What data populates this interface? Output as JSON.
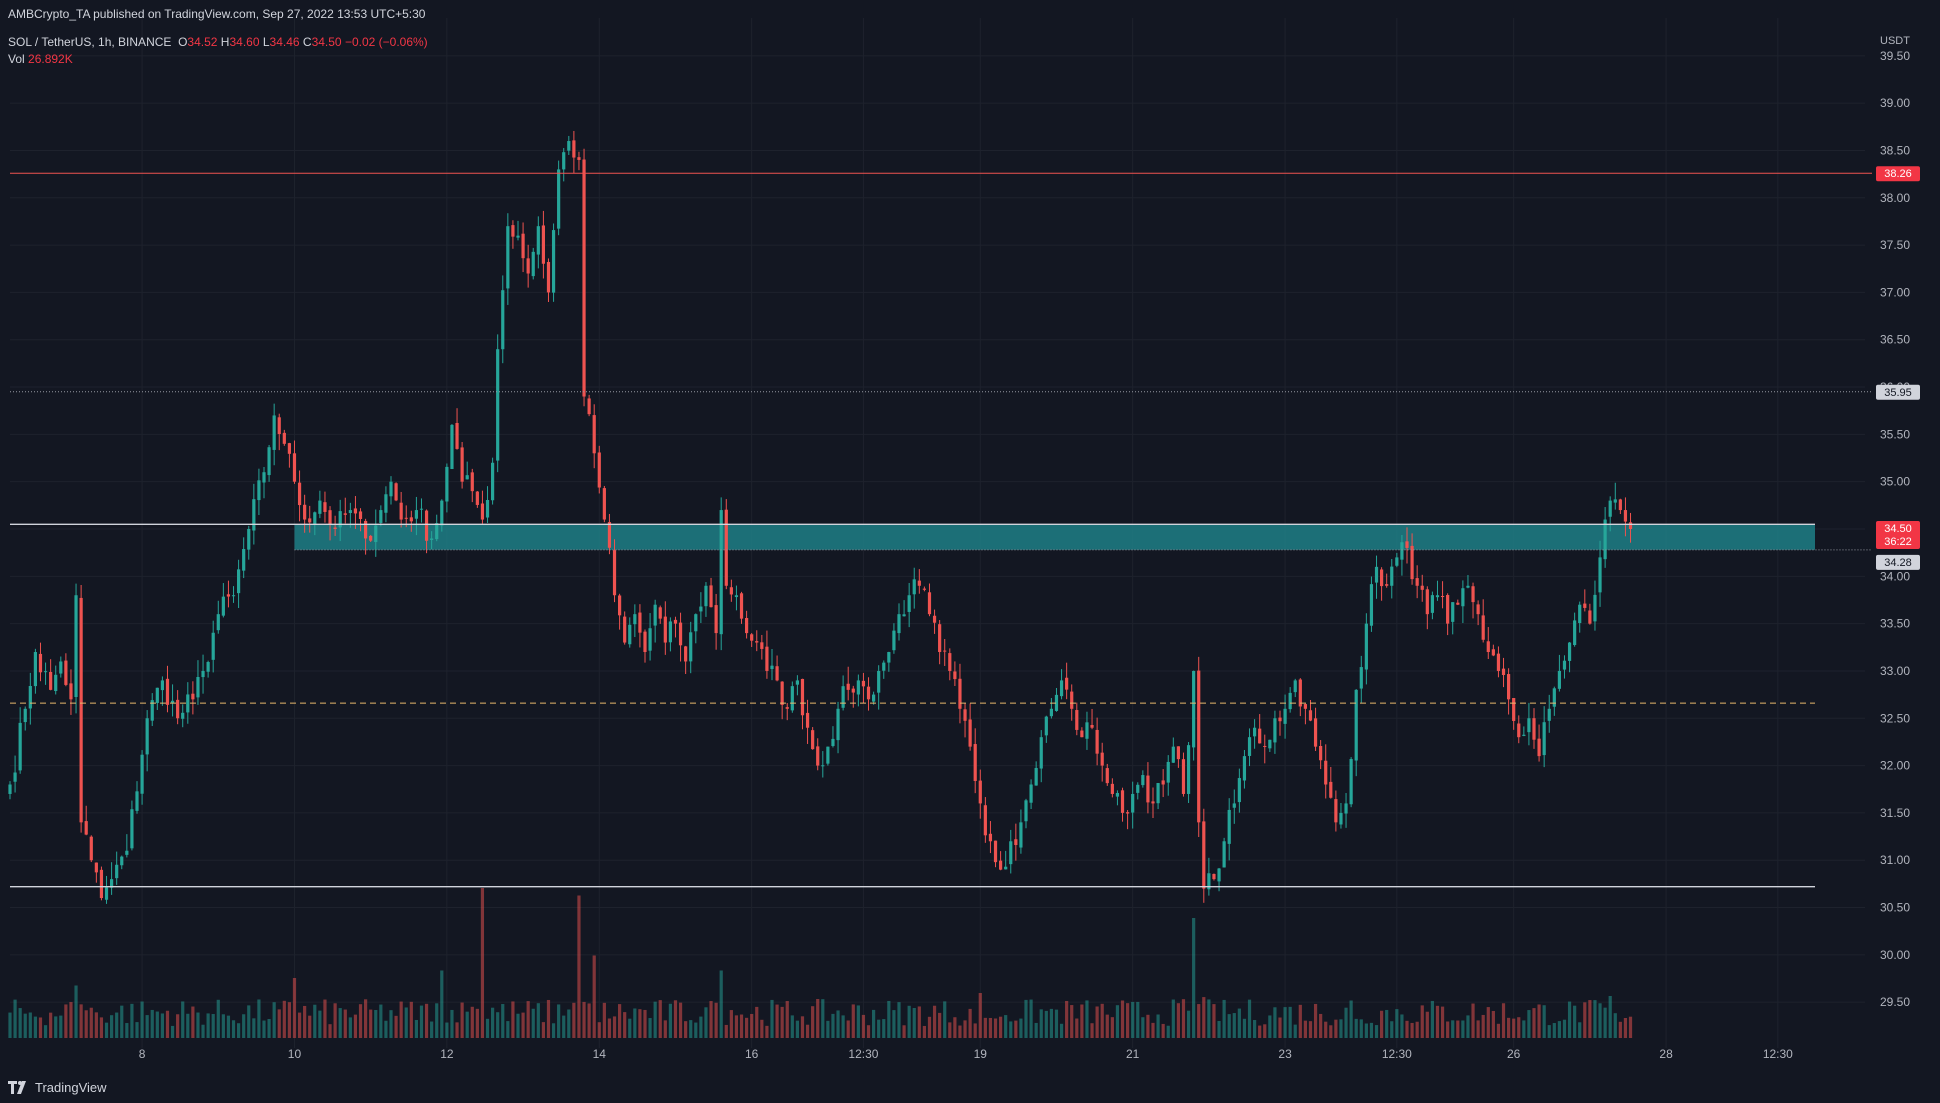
{
  "header": {
    "published": "AMBCrypto_TA published on TradingView.com, Sep 27, 2022 13:53 UTC+5:30",
    "symbol": "SOL / TetherUS, 1h, BINANCE",
    "o_label": "O",
    "o": "34.52",
    "h_label": "H",
    "h": "34.60",
    "l_label": "L",
    "l": "34.46",
    "c_label": "C",
    "c": "34.50",
    "change": "−0.02 (−0.06%)",
    "vol_label": "Vol",
    "vol": "26.892K"
  },
  "footer": {
    "brand": "TradingView"
  },
  "colors": {
    "bg": "#131722",
    "up": "#26a69a",
    "down": "#ef5350",
    "grid": "#1e222d",
    "zone": "#1f7f86",
    "resistance": "#ef5350",
    "mid_dashed": "#e8b86d"
  },
  "chart_data": {
    "type": "candlestick",
    "y_axis": {
      "currency": "USDT",
      "ticks": [
        29.5,
        30,
        30.5,
        31,
        31.5,
        32,
        32.5,
        33,
        33.5,
        34,
        34.5,
        35,
        35.5,
        36,
        36.5,
        37,
        37.5,
        38,
        38.5,
        39,
        39.5
      ],
      "range": [
        29.1,
        39.9
      ]
    },
    "x_ticks": [
      {
        "label": "8",
        "i": 26
      },
      {
        "label": "10",
        "i": 56
      },
      {
        "label": "12",
        "i": 86
      },
      {
        "label": "14",
        "i": 116
      },
      {
        "label": "16",
        "i": 146
      },
      {
        "label": "12:30",
        "i": 168
      },
      {
        "label": "19",
        "i": 191
      },
      {
        "label": "21",
        "i": 221
      },
      {
        "label": "23",
        "i": 251
      },
      {
        "label": "12:30",
        "i": 273
      },
      {
        "label": "26",
        "i": 296
      },
      {
        "label": "28",
        "i": 326
      },
      {
        "label": "12:30",
        "i": 348
      }
    ],
    "anchors": [
      [
        0,
        31.8
      ],
      [
        3,
        32.6
      ],
      [
        5,
        33.2
      ],
      [
        8,
        32.8
      ],
      [
        10,
        33.1
      ],
      [
        12,
        32.7
      ],
      [
        13,
        33.8
      ],
      [
        14,
        31.4
      ],
      [
        16,
        31.0
      ],
      [
        18,
        30.6
      ],
      [
        20,
        30.8
      ],
      [
        23,
        31.1
      ],
      [
        27,
        32.5
      ],
      [
        30,
        32.9
      ],
      [
        33,
        32.5
      ],
      [
        36,
        32.7
      ],
      [
        38,
        33.0
      ],
      [
        41,
        33.6
      ],
      [
        44,
        33.8
      ],
      [
        47,
        34.5
      ],
      [
        50,
        35.1
      ],
      [
        52,
        35.7
      ],
      [
        54,
        35.4
      ],
      [
        56,
        35.0
      ],
      [
        58,
        34.6
      ],
      [
        61,
        34.8
      ],
      [
        64,
        34.5
      ],
      [
        67,
        34.7
      ],
      [
        70,
        34.4
      ],
      [
        73,
        34.7
      ],
      [
        75,
        35.0
      ],
      [
        77,
        34.6
      ],
      [
        80,
        34.7
      ],
      [
        83,
        34.4
      ],
      [
        85,
        34.8
      ],
      [
        87,
        35.6
      ],
      [
        89,
        35.0
      ],
      [
        91,
        34.9
      ],
      [
        93,
        34.6
      ],
      [
        95,
        35.2
      ],
      [
        96,
        36.4
      ],
      [
        98,
        37.7
      ],
      [
        100,
        37.6
      ],
      [
        102,
        37.2
      ],
      [
        104,
        37.7
      ],
      [
        106,
        37.0
      ],
      [
        108,
        38.3
      ],
      [
        110,
        38.6
      ],
      [
        112,
        38.4
      ],
      [
        113,
        35.9
      ],
      [
        115,
        35.3
      ],
      [
        117,
        34.6
      ],
      [
        119,
        33.8
      ],
      [
        121,
        33.3
      ],
      [
        123,
        33.6
      ],
      [
        125,
        33.2
      ],
      [
        127,
        33.7
      ],
      [
        129,
        33.3
      ],
      [
        131,
        33.5
      ],
      [
        133,
        33.1
      ],
      [
        135,
        33.6
      ],
      [
        137,
        33.9
      ],
      [
        139,
        33.4
      ],
      [
        140,
        34.7
      ],
      [
        141,
        33.9
      ],
      [
        143,
        33.8
      ],
      [
        145,
        33.4
      ],
      [
        147,
        33.3
      ],
      [
        149,
        33.0
      ],
      [
        151,
        32.9
      ],
      [
        153,
        32.6
      ],
      [
        155,
        32.9
      ],
      [
        157,
        32.4
      ],
      [
        159,
        32.0
      ],
      [
        161,
        32.2
      ],
      [
        163,
        32.6
      ],
      [
        165,
        32.8
      ],
      [
        167,
        32.9
      ],
      [
        169,
        32.7
      ],
      [
        171,
        33.0
      ],
      [
        173,
        33.2
      ],
      [
        175,
        33.6
      ],
      [
        177,
        33.8
      ],
      [
        179,
        33.9
      ],
      [
        181,
        33.6
      ],
      [
        183,
        33.2
      ],
      [
        185,
        33.0
      ],
      [
        187,
        32.6
      ],
      [
        189,
        32.2
      ],
      [
        191,
        31.6
      ],
      [
        193,
        31.2
      ],
      [
        195,
        30.9
      ],
      [
        197,
        31.2
      ],
      [
        199,
        31.4
      ],
      [
        201,
        31.8
      ],
      [
        203,
        32.3
      ],
      [
        205,
        32.6
      ],
      [
        207,
        32.9
      ],
      [
        209,
        32.6
      ],
      [
        211,
        32.3
      ],
      [
        213,
        32.4
      ],
      [
        215,
        32.0
      ],
      [
        217,
        31.7
      ],
      [
        219,
        31.5
      ],
      [
        221,
        31.7
      ],
      [
        223,
        31.9
      ],
      [
        225,
        31.6
      ],
      [
        227,
        31.8
      ],
      [
        229,
        32.2
      ],
      [
        231,
        31.7
      ],
      [
        233,
        33.0
      ],
      [
        234,
        31.4
      ],
      [
        235,
        30.7
      ],
      [
        237,
        30.8
      ],
      [
        239,
        31.2
      ],
      [
        241,
        31.6
      ],
      [
        243,
        32.1
      ],
      [
        245,
        32.4
      ],
      [
        247,
        32.2
      ],
      [
        249,
        32.5
      ],
      [
        251,
        32.6
      ],
      [
        253,
        32.9
      ],
      [
        255,
        32.6
      ],
      [
        257,
        32.2
      ],
      [
        259,
        31.8
      ],
      [
        261,
        31.4
      ],
      [
        263,
        31.6
      ],
      [
        265,
        32.8
      ],
      [
        267,
        33.5
      ],
      [
        269,
        34.1
      ],
      [
        271,
        33.9
      ],
      [
        273,
        34.2
      ],
      [
        275,
        34.3
      ],
      [
        277,
        33.9
      ],
      [
        279,
        33.6
      ],
      [
        281,
        33.8
      ],
      [
        283,
        33.5
      ],
      [
        285,
        33.7
      ],
      [
        287,
        33.9
      ],
      [
        289,
        33.6
      ],
      [
        291,
        33.2
      ],
      [
        293,
        33.0
      ],
      [
        295,
        32.7
      ],
      [
        297,
        32.3
      ],
      [
        299,
        32.5
      ],
      [
        301,
        32.1
      ],
      [
        303,
        32.6
      ],
      [
        305,
        33.0
      ],
      [
        307,
        33.3
      ],
      [
        309,
        33.7
      ],
      [
        311,
        33.5
      ],
      [
        313,
        34.2
      ],
      [
        314,
        34.6
      ],
      [
        315,
        34.8
      ],
      [
        317,
        34.7
      ],
      [
        319,
        34.5
      ]
    ],
    "volume_peaks": [
      [
        13,
        0.35
      ],
      [
        56,
        0.4
      ],
      [
        85,
        0.45
      ],
      [
        93,
        1.0
      ],
      [
        112,
        0.95
      ],
      [
        115,
        0.55
      ],
      [
        140,
        0.45
      ],
      [
        191,
        0.3
      ],
      [
        233,
        0.8
      ],
      [
        264,
        0.25
      ],
      [
        315,
        0.28
      ]
    ],
    "levels": [
      {
        "name": "resistance-top",
        "price": 38.26,
        "style": "solid",
        "color": "#ef5350"
      },
      {
        "name": "dotted-high",
        "price": 35.95,
        "style": "dotted",
        "color": "#9598a1"
      },
      {
        "name": "zone-top",
        "price": 34.55,
        "style": "solid",
        "color": "#d1d4dc"
      },
      {
        "name": "zone-bottom",
        "price": 34.28,
        "style": "dotted",
        "color": "#9598a1"
      },
      {
        "name": "mid-dashed",
        "price": 32.66,
        "style": "dashed",
        "color": "#e8b86d"
      },
      {
        "name": "support",
        "price": 30.72,
        "style": "solid",
        "color": "#d1d4dc"
      }
    ],
    "zone": {
      "top": 34.55,
      "bottom": 34.28,
      "start_i": 56
    },
    "price_labels": [
      {
        "text": "38.26",
        "price": 38.26,
        "bg": "#f23645",
        "fg": "#ffffff"
      },
      {
        "text": "35.95",
        "price": 35.95,
        "bg": "#d1d4dc",
        "fg": "#131722"
      },
      {
        "text": "34.50",
        "price": 34.5,
        "bg": "#f23645",
        "fg": "#ffffff",
        "countdown": "36:22"
      },
      {
        "text": "34.28",
        "price": 34.28,
        "bg": "#d1d4dc",
        "fg": "#131722"
      }
    ]
  }
}
